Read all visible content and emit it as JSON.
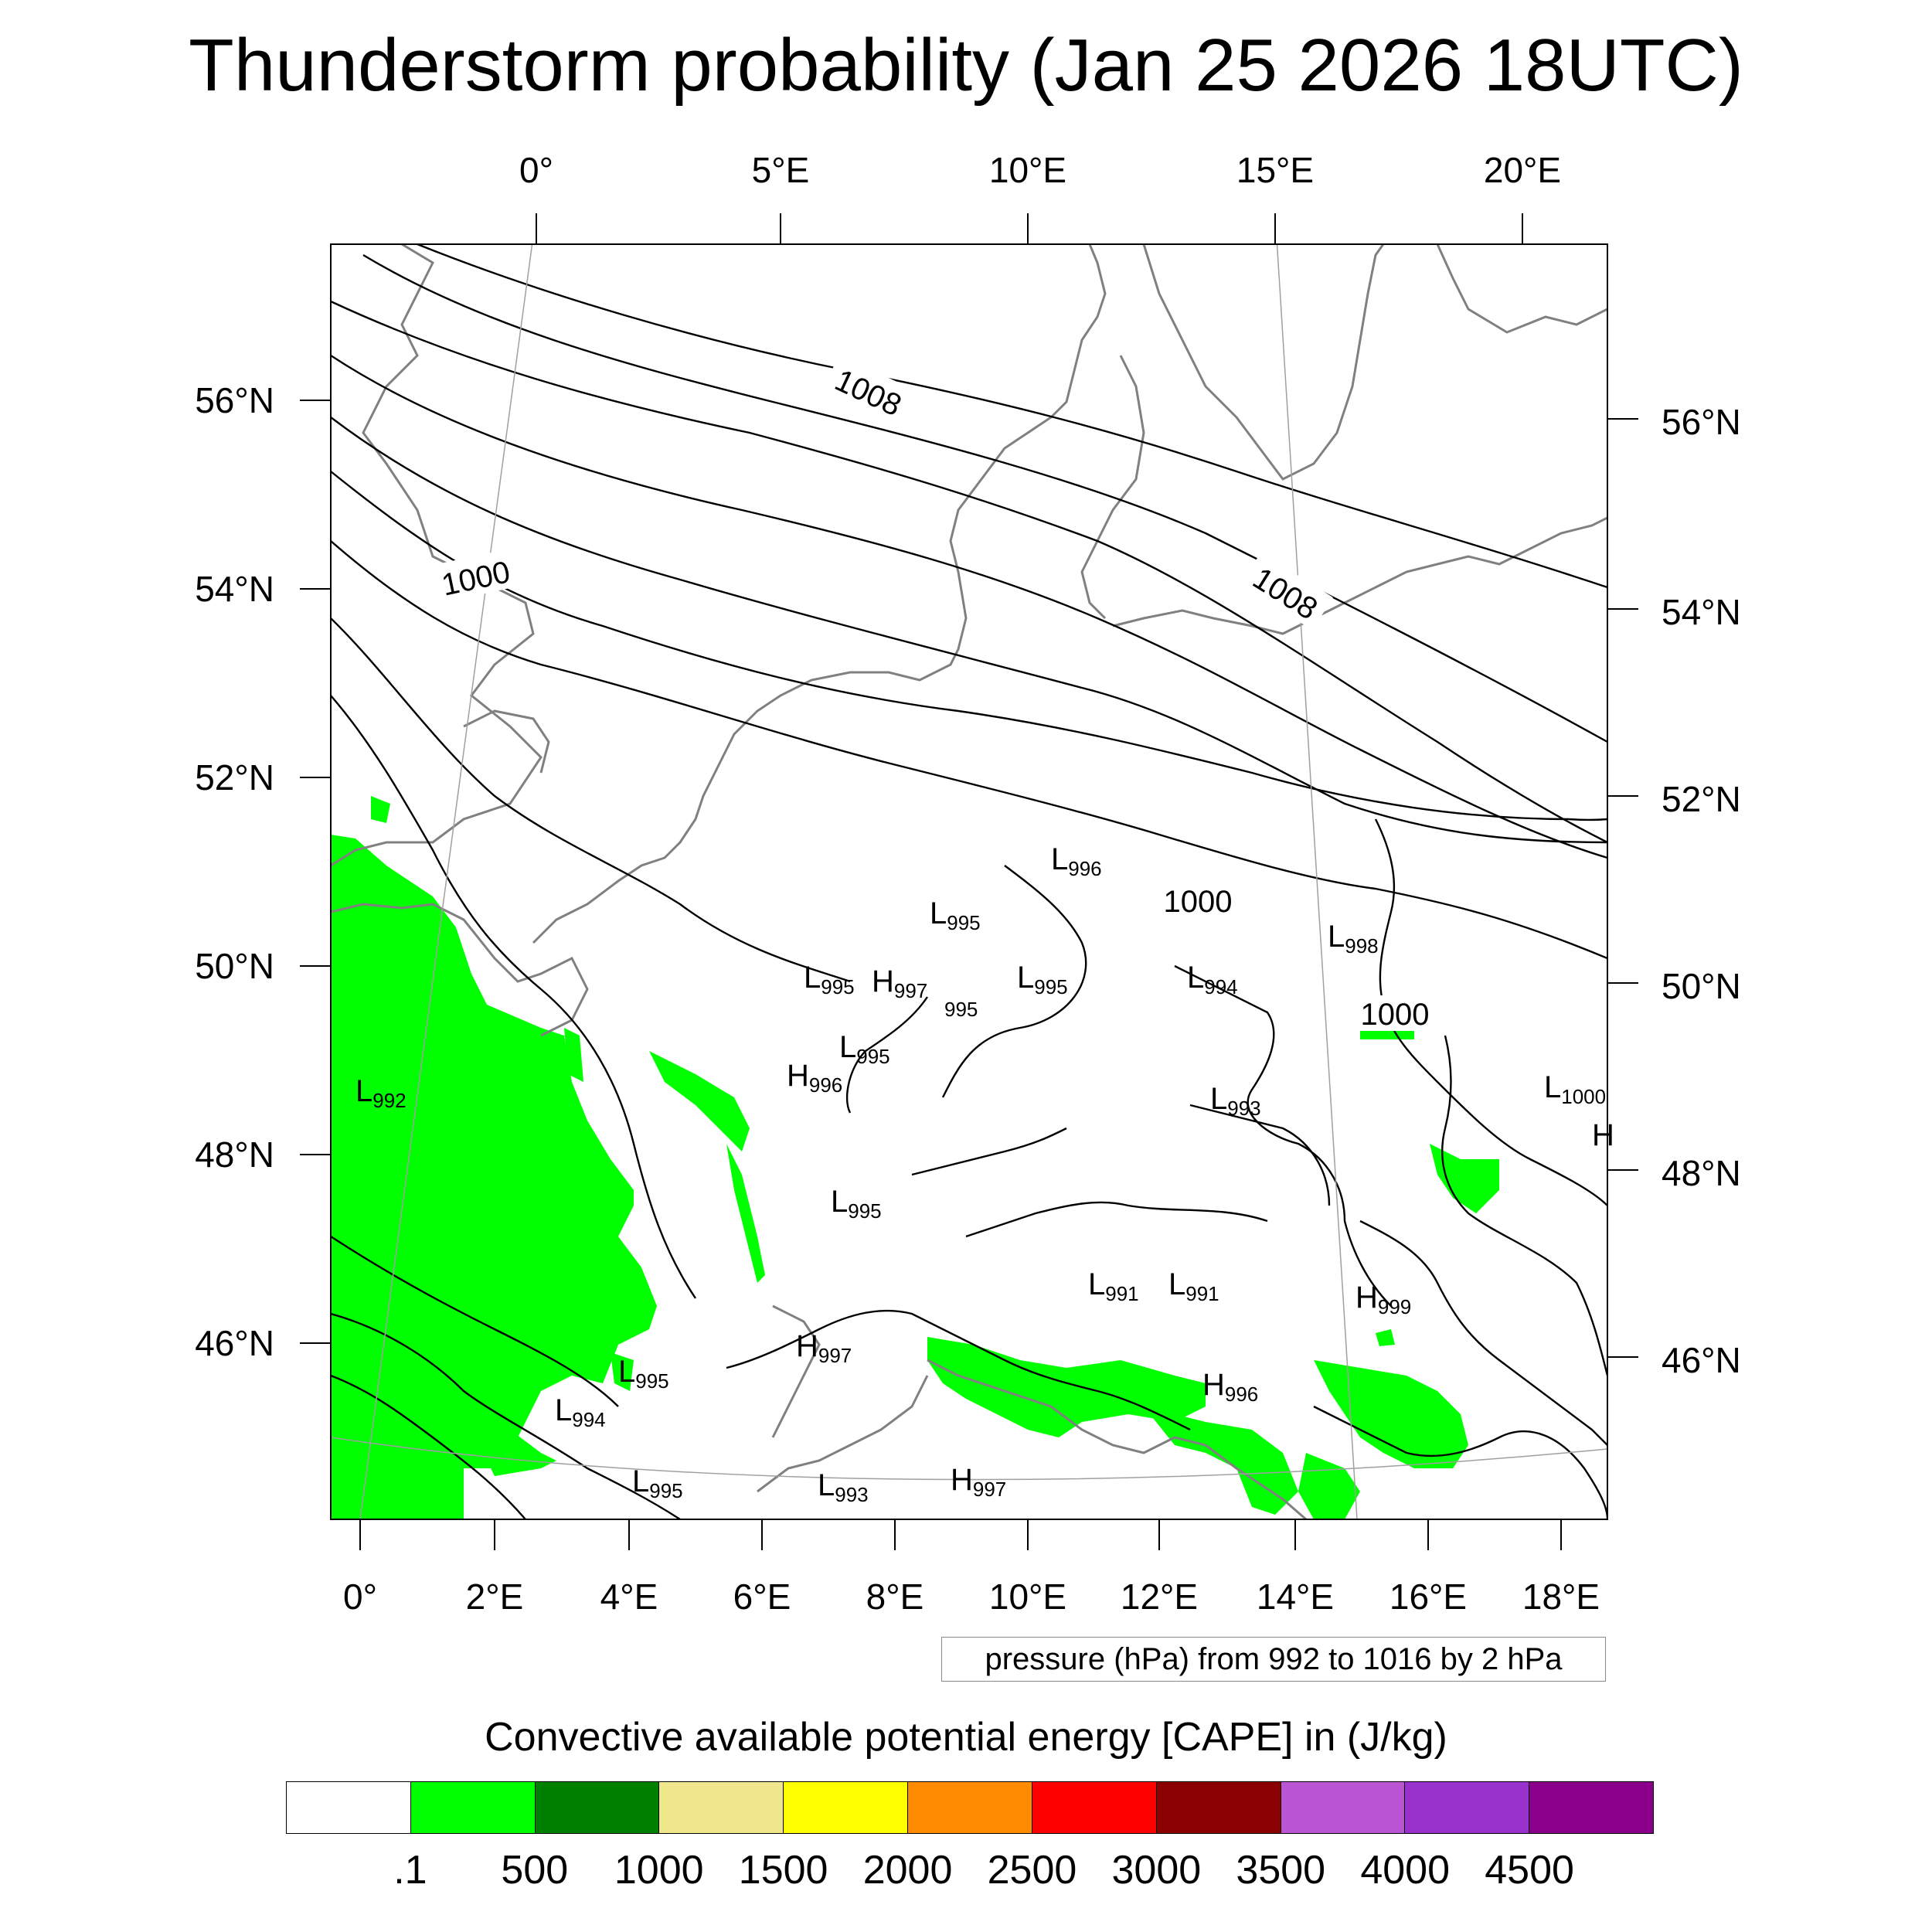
{
  "title": "Thunderstorm probability (Jan 25 2026 18UTC)",
  "top_axis_ticks": [
    "0°",
    "5°E",
    "10°E",
    "15°E",
    "20°E"
  ],
  "bottom_axis_ticks": [
    "0°",
    "2°E",
    "4°E",
    "6°E",
    "8°E",
    "10°E",
    "12°E",
    "14°E",
    "16°E",
    "18°E"
  ],
  "left_axis_ticks": [
    "56°N",
    "54°N",
    "52°N",
    "50°N",
    "48°N",
    "46°N"
  ],
  "right_axis_ticks": [
    "56°N",
    "54°N",
    "52°N",
    "50°N",
    "48°N",
    "46°N"
  ],
  "isobar_labels": [
    "1008",
    "1008",
    "1000",
    "1000",
    "1000"
  ],
  "pressure_centers": [
    {
      "type": "L",
      "value": "996"
    },
    {
      "type": "L",
      "value": "995"
    },
    {
      "type": "L",
      "value": "998"
    },
    {
      "type": "L",
      "value": "995"
    },
    {
      "type": "H",
      "value": "997"
    },
    {
      "type": "",
      "value": "995"
    },
    {
      "type": "L",
      "value": "995"
    },
    {
      "type": "L",
      "value": "994"
    },
    {
      "type": "L",
      "value": "995"
    },
    {
      "type": "H",
      "value": "996"
    },
    {
      "type": "L",
      "value": "992"
    },
    {
      "type": "L",
      "value": "993"
    },
    {
      "type": "L",
      "value": "1000"
    },
    {
      "type": "H",
      "value": ""
    },
    {
      "type": "L",
      "value": "995"
    },
    {
      "type": "L",
      "value": "991"
    },
    {
      "type": "L",
      "value": "991"
    },
    {
      "type": "H",
      "value": "999"
    },
    {
      "type": "H",
      "value": "997"
    },
    {
      "type": "L",
      "value": "995"
    },
    {
      "type": "L",
      "value": "994"
    },
    {
      "type": "H",
      "value": "996"
    },
    {
      "type": "L",
      "value": "995"
    },
    {
      "type": "L",
      "value": "993"
    },
    {
      "type": "H",
      "value": "997"
    }
  ],
  "pressure_note": "pressure (hPa) from 992 to 1016 by 2 hPa",
  "colorbar": {
    "title": "Convective available potential energy [CAPE] in (J/kg)",
    "colors": [
      "#ffffff",
      "#00ff00",
      "#008000",
      "#f0e68c",
      "#ffff00",
      "#ff8c00",
      "#ff0000",
      "#8b0000",
      "#ba55d3",
      "#9932cc",
      "#8b008b"
    ],
    "tick_labels": [
      ".1",
      "500",
      "1000",
      "1500",
      "2000",
      "2500",
      "3000",
      "3500",
      "4000",
      "4500"
    ]
  }
}
